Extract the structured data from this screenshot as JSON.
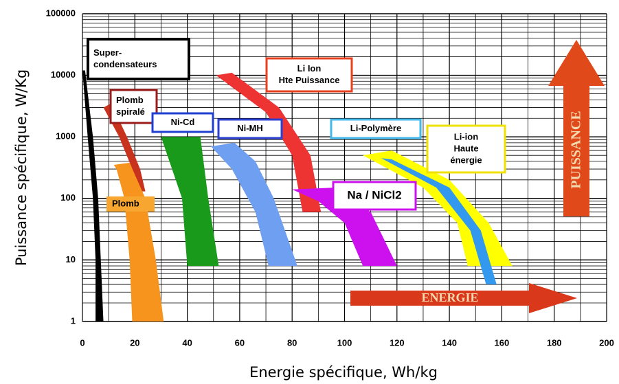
{
  "chart_data": {
    "type": "area",
    "xlabel": "Energie spécifique, Wh/kg",
    "ylabel": "Puissance spécifique,  W/Kg",
    "xlim": [
      0,
      200
    ],
    "ylim": [
      1,
      100000
    ],
    "log_y": true,
    "grid": true,
    "xticks": [
      0,
      20,
      40,
      60,
      80,
      100,
      120,
      140,
      160,
      180,
      200
    ],
    "x_minor_ticks": [
      10,
      30,
      50,
      70,
      90,
      110,
      130,
      150,
      170,
      190
    ],
    "yticks": [
      1,
      10,
      100,
      1000,
      10000,
      100000
    ],
    "y_minor_ticks": [
      2,
      3,
      4,
      5,
      6,
      7,
      8,
      9,
      20,
      30,
      40,
      50,
      60,
      70,
      80,
      90,
      200,
      300,
      400,
      500,
      600,
      700,
      800,
      900,
      2000,
      3000,
      4000,
      5000,
      6000,
      7000,
      8000,
      9000,
      20000,
      30000,
      40000,
      50000,
      60000,
      70000,
      80000,
      90000
    ],
    "annotations": {
      "power_arrow": "PUISSANCE",
      "energy_arrow": "ENERGIE"
    },
    "series": [
      {
        "label": [
          "Super-",
          "condensateurs"
        ],
        "color": "#000000",
        "border": "#000000",
        "x": [
          0,
          2,
          4,
          5,
          5,
          8,
          7,
          6,
          4,
          1
        ],
        "values": [
          12000,
          1000,
          100,
          10,
          1,
          1,
          10,
          100,
          1000,
          12000
        ]
      },
      {
        "label": [
          "Plomb",
          "spiralé"
        ],
        "color": "#c8331e",
        "border": "#9b1c1c",
        "x": [
          8,
          14,
          19,
          21,
          24,
          22,
          17,
          11
        ],
        "values": [
          3000,
          1000,
          300,
          130,
          130,
          300,
          1000,
          3500
        ]
      },
      {
        "label": [
          "Plomb"
        ],
        "color": "#f7941d",
        "border": "#f7c05a",
        "x": [
          12,
          18,
          24,
          28,
          31,
          19,
          18,
          16,
          13
        ],
        "values": [
          350,
          380,
          100,
          10,
          1,
          1,
          10,
          100,
          300
        ]
      },
      {
        "label": [
          "Ni-Cd"
        ],
        "color": "#1a9a1a",
        "border": "#1e3fd0",
        "x": [
          30,
          45,
          48,
          52,
          40,
          38
        ],
        "values": [
          1000,
          1000,
          100,
          8,
          8,
          100
        ]
      },
      {
        "label": [
          "Ni-MH"
        ],
        "color": "#6f9ff0",
        "border": "#2a3fd0",
        "x": [
          49,
          58,
          66,
          73,
          82,
          71,
          66,
          57
        ],
        "values": [
          700,
          800,
          400,
          100,
          8,
          8,
          60,
          300
        ]
      },
      {
        "label": [
          "Li Ion",
          "Hte Puissance"
        ],
        "color": "#ee3333",
        "border": "#e8401e",
        "x": [
          51,
          57,
          75,
          87,
          91,
          84,
          80,
          70
        ],
        "values": [
          10000,
          11000,
          3000,
          500,
          60,
          60,
          500,
          2500
        ]
      },
      {
        "label": [
          "Na / NiCl2"
        ],
        "color": "#cc11ee",
        "border": "#cc11ee",
        "x": [
          80,
          97,
          110,
          120,
          107,
          100,
          90
        ],
        "values": [
          140,
          150,
          60,
          8,
          8,
          40,
          90
        ]
      },
      {
        "label": [
          "Li-ion",
          "Haute",
          "énergie"
        ],
        "color": "#ffff00",
        "border": "#f0e000",
        "x": [
          107,
          118,
          140,
          155,
          164,
          147,
          143,
          130
        ],
        "values": [
          500,
          600,
          200,
          40,
          8,
          8,
          40,
          150
        ]
      },
      {
        "label": [
          "Li-Polymère"
        ],
        "color": "#3399ee",
        "border": "#44b8e8",
        "x": [
          114,
          118,
          140,
          152,
          158,
          154,
          148,
          135
        ],
        "values": [
          450,
          430,
          150,
          30,
          4,
          4,
          30,
          150
        ]
      }
    ]
  }
}
